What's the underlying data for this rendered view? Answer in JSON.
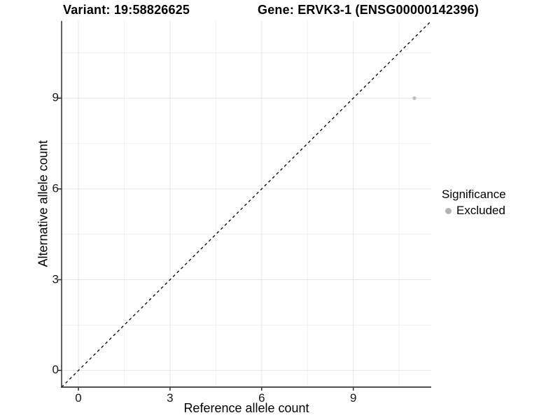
{
  "figure": {
    "title_left": "Variant: 19:58826625",
    "title_right": "Gene: ERVK3-1 (ENSG00000142396)"
  },
  "chart_data": {
    "type": "scatter",
    "title": "Variant: 19:58826625 | Gene: ERVK3-1 (ENSG00000142396)",
    "xlabel": "Reference allele count",
    "ylabel": "Alternative allele count",
    "xlim": [
      -0.55,
      11.55
    ],
    "ylim": [
      -0.55,
      11.55
    ],
    "x_ticks": [
      0,
      3,
      6,
      9
    ],
    "y_ticks": [
      0,
      3,
      6,
      9
    ],
    "x_minor_gridlines": [
      1.5,
      4.5,
      7.5,
      10.5
    ],
    "y_minor_gridlines": [
      1.5,
      4.5,
      7.5,
      10.5
    ],
    "grid": true,
    "identity_line": {
      "slope": 1,
      "intercept": 0,
      "style": "dashed",
      "color": "#000000"
    },
    "series": [
      {
        "name": "Excluded",
        "color": "#bdbdbd",
        "points": [
          {
            "x": 11,
            "y": 9
          }
        ]
      }
    ],
    "legend": {
      "title": "Significance",
      "position": "right",
      "items": [
        {
          "label": "Excluded",
          "color": "#b3b3b3"
        }
      ]
    },
    "colors": {
      "gridline_major": "#e6e6e6",
      "gridline_minor": "#f1f1f1",
      "axis_line": "#3a3a3a",
      "tick_text": "#1a1a1a",
      "background": "#ffffff"
    }
  }
}
